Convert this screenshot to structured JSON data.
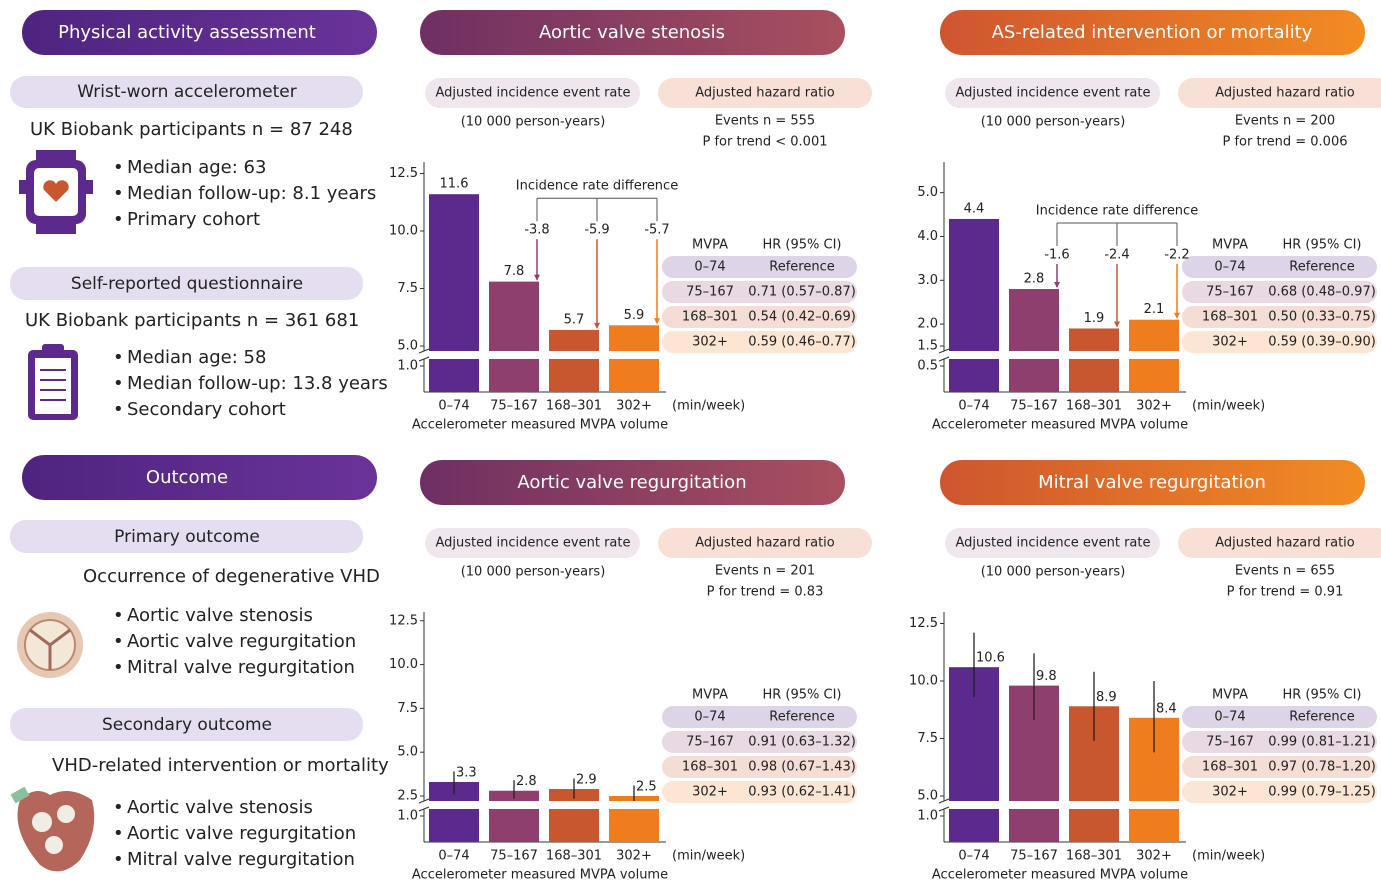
{
  "left": {
    "assessment_title": "Physical activity assessment",
    "accelerometer": {
      "title": "Wrist-worn accelerometer",
      "participants": "UK Biobank participants n = 87 248",
      "items": [
        "Median age: 63",
        "Median follow-up: 8.1 years",
        "Primary cohort"
      ]
    },
    "questionnaire": {
      "title": "Self-reported questionnaire",
      "participants": "UK Biobank participants n = 361 681",
      "items": [
        "Median age: 58",
        "Median follow-up: 13.8 years",
        "Secondary cohort"
      ]
    },
    "outcome_title": "Outcome",
    "primary": {
      "title": "Primary outcome",
      "subtitle": "Occurrence of degenerative VHD",
      "items": [
        "Aortic valve stenosis",
        "Aortic valve regurgitation",
        "Mitral valve regurgitation"
      ]
    },
    "secondary": {
      "title": "Secondary outcome",
      "subtitle": "VHD-related intervention or mortality",
      "items": [
        "Aortic valve stenosis",
        "Aortic valve regurgitation",
        "Mitral valve regurgitation"
      ]
    }
  },
  "chart_data": [
    {
      "type": "bar",
      "title": "Aortic valve stenosis",
      "rate_label": "Adjusted incidence event rate",
      "rate_units": "(10 000 person-years)",
      "hr_label": "Adjusted hazard ratio",
      "events": "Events n = 555",
      "p_trend": "P for trend < 0.001",
      "categories": [
        "0–74",
        "75–167",
        "168–301",
        "302+"
      ],
      "x_unit": "(min/week)",
      "xlabel": "Accelerometer measured MVPA volume",
      "values": [
        11.6,
        7.8,
        5.7,
        5.9
      ],
      "colors": [
        "#5b2a8c",
        "#8e3f6e",
        "#c8572f",
        "#ef7d1e"
      ],
      "ylim": [
        0,
        13
      ],
      "y_break": [
        1,
        5
      ],
      "yticks": [
        {
          "value": 1,
          "label": "1.0"
        },
        {
          "value": 5,
          "label": "5.0"
        },
        7.5,
        {
          "value": 10,
          "label": "10.0"
        },
        12.5
      ],
      "difference_label": "Incidence rate difference",
      "differences": [
        -3.8,
        -5.9,
        -5.7
      ],
      "table": {
        "header": [
          "MVPA",
          "HR (95% CI)"
        ],
        "rows": [
          [
            "0–74",
            "Reference"
          ],
          [
            "75–167",
            "0.71 (0.57–0.87)"
          ],
          [
            "168–301",
            "0.54 (0.42–0.69)"
          ],
          [
            "302+",
            "0.59 (0.46–0.77)"
          ]
        ]
      }
    },
    {
      "type": "bar",
      "title": "AS-related intervention or mortality",
      "rate_label": "Adjusted incidence event rate",
      "rate_units": "(10 000 person-years)",
      "hr_label": "Adjusted hazard ratio",
      "events": "Events n = 200",
      "p_trend": "P for trend = 0.006",
      "categories": [
        "0–74",
        "75–167",
        "168–301",
        "302+"
      ],
      "x_unit": "(min/week)",
      "xlabel": "Accelerometer measured MVPA volume",
      "values": [
        4.4,
        2.8,
        1.9,
        2.1
      ],
      "colors": [
        "#5b2a8c",
        "#8e3f6e",
        "#c8572f",
        "#ef7d1e"
      ],
      "ylim": [
        0,
        5.7
      ],
      "y_break": [
        0.5,
        1.5
      ],
      "yticks": [
        0.5,
        1.5,
        {
          "value": 2,
          "label": "2.0"
        },
        {
          "value": 3,
          "label": "3.0"
        },
        {
          "value": 4,
          "label": "4.0"
        },
        {
          "value": 5,
          "label": "5.0"
        }
      ],
      "difference_label": "Incidence rate difference",
      "differences": [
        -1.6,
        -2.4,
        -2.2
      ],
      "table": {
        "header": [
          "MVPA",
          "HR (95% CI)"
        ],
        "rows": [
          [
            "0–74",
            "Reference"
          ],
          [
            "75–167",
            "0.68 (0.48–0.97)"
          ],
          [
            "168–301",
            "0.50 (0.33–0.75)"
          ],
          [
            "302+",
            "0.59 (0.39–0.90)"
          ]
        ]
      }
    },
    {
      "type": "bar",
      "title": "Aortic valve regurgitation",
      "rate_label": "Adjusted incidence event rate",
      "rate_units": "(10 000 person-years)",
      "hr_label": "Adjusted hazard ratio",
      "events": "Events n = 201",
      "p_trend": "P for trend = 0.83",
      "categories": [
        "0–74",
        "75–167",
        "168–301",
        "302+"
      ],
      "x_unit": "(min/week)",
      "xlabel": "Accelerometer measured MVPA volume",
      "values": [
        3.3,
        2.8,
        2.9,
        2.5
      ],
      "ci": [
        [
          2.6,
          3.9
        ],
        [
          2.3,
          3.4
        ],
        [
          2.3,
          3.5
        ],
        [
          1.9,
          3.1
        ]
      ],
      "colors": [
        "#5b2a8c",
        "#8e3f6e",
        "#c8572f",
        "#ef7d1e"
      ],
      "ylim": [
        0,
        13
      ],
      "y_break": [
        1,
        2.5
      ],
      "yticks": [
        {
          "value": 1,
          "label": "1.0"
        },
        2.5,
        {
          "value": 5,
          "label": "5.0"
        },
        7.5,
        {
          "value": 10,
          "label": "10.0"
        },
        12.5
      ],
      "table": {
        "header": [
          "MVPA",
          "HR (95% CI)"
        ],
        "rows": [
          [
            "0–74",
            "Reference"
          ],
          [
            "75–167",
            "0.91 (0.63–1.32)"
          ],
          [
            "168–301",
            "0.98 (0.67–1.43)"
          ],
          [
            "302+",
            "0.93 (0.62–1.41)"
          ]
        ]
      }
    },
    {
      "type": "bar",
      "title": "Mitral valve regurgitation",
      "rate_label": "Adjusted incidence event rate",
      "rate_units": "(10 000 person-years)",
      "hr_label": "Adjusted hazard ratio",
      "events": "Events n = 655",
      "p_trend": "P for trend = 0.91",
      "categories": [
        "0–74",
        "75–167",
        "168–301",
        "302+"
      ],
      "x_unit": "(min/week)",
      "xlabel": "Accelerometer measured MVPA volume",
      "values": [
        10.6,
        9.8,
        8.9,
        8.4
      ],
      "ci": [
        [
          9.3,
          12.1
        ],
        [
          8.3,
          11.2
        ],
        [
          7.4,
          10.4
        ],
        [
          6.9,
          10.0
        ]
      ],
      "colors": [
        "#5b2a8c",
        "#8e3f6e",
        "#c8572f",
        "#ef7d1e"
      ],
      "ylim": [
        0,
        13
      ],
      "y_break": [
        1,
        5
      ],
      "yticks": [
        {
          "value": 1,
          "label": "1.0"
        },
        {
          "value": 5,
          "label": "5.0"
        },
        7.5,
        {
          "value": 10,
          "label": "10.0"
        },
        12.5
      ],
      "table": {
        "header": [
          "MVPA",
          "HR (95% CI)"
        ],
        "rows": [
          [
            "0–74",
            "Reference"
          ],
          [
            "75–167",
            "0.99 (0.81–1.21)"
          ],
          [
            "168–301",
            "0.97 (0.78–1.20)"
          ],
          [
            "302+",
            "0.99 (0.79–1.25)"
          ]
        ]
      }
    }
  ]
}
